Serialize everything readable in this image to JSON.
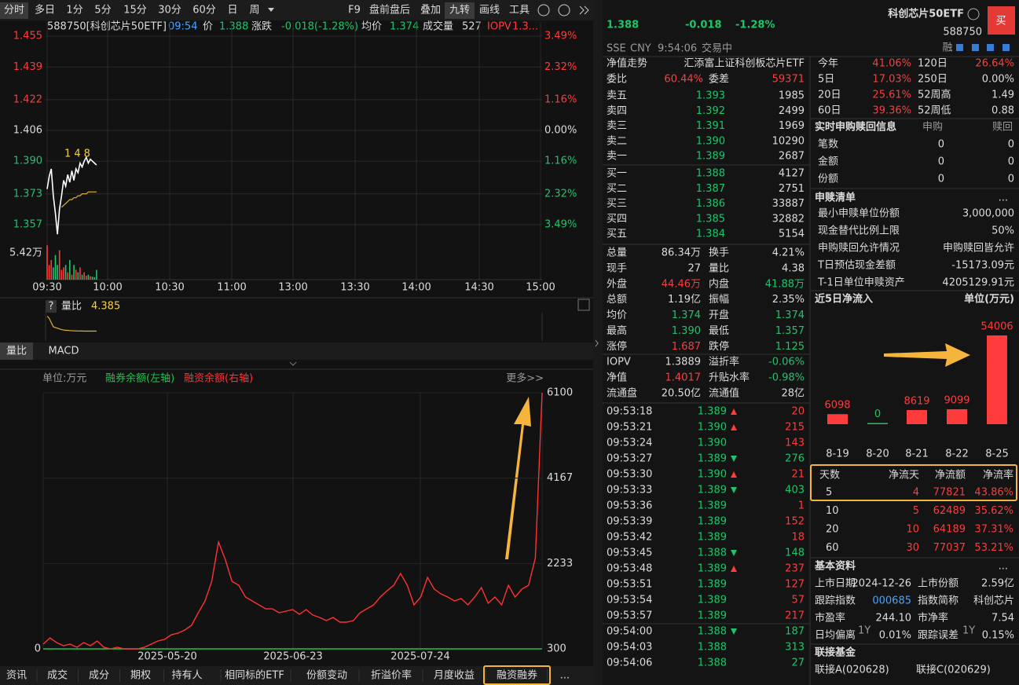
{
  "toolbar": {
    "periods": [
      "分时",
      "多日",
      "1分",
      "5分",
      "15分",
      "30分",
      "60分",
      "日",
      "周"
    ],
    "tools": [
      "F9",
      "盘前盘后",
      "叠加",
      "九转",
      "画线",
      "工具"
    ]
  },
  "intraday": {
    "legend": [
      "588750[科创芯片50ETF]",
      "09:54",
      "价",
      "1.388",
      "涨跌",
      "-0.018(-1.28%)",
      "均价",
      "1.374",
      "成交量",
      "527",
      "IOPV",
      "1.3..."
    ],
    "ylim": [
      1.3488,
      1.4624
    ],
    "yticks": [
      1.455,
      1.439,
      1.422,
      1.406,
      {
        "value": 1.39,
        "label": "1.390"
      },
      1.373,
      1.357
    ],
    "pct_ticks": [
      "3.49%",
      "2.32%",
      "1.16%",
      "0.00%",
      "1.16%",
      "2.32%",
      "3.49%"
    ],
    "vol_label": "5.42万",
    "vol_ylim": [
      0,
      8
    ],
    "xticks": [
      "09:30",
      "10:00",
      "10:30",
      "11:00",
      "13:00",
      "13:30",
      "14:00",
      "14:30",
      "15:00"
    ],
    "marker": "148",
    "price": [
      1.3755,
      1.382,
      1.386,
      1.372,
      1.363,
      1.352,
      1.365,
      1.372,
      1.38,
      1.377,
      1.383,
      1.379,
      1.385,
      1.38,
      1.386,
      1.384,
      1.389,
      1.387,
      1.39,
      1.392,
      1.389,
      1.391,
      1.39,
      1.389,
      1.388
    ],
    "avg": [
      null,
      null,
      null,
      null,
      null,
      null,
      null,
      1.366,
      1.367,
      1.368,
      1.369,
      1.37,
      1.37,
      1.371,
      1.371,
      1.372,
      1.372,
      1.373,
      1.373,
      1.373,
      1.374,
      1.374,
      1.374,
      1.374,
      1.374
    ],
    "volume": [
      7,
      3,
      4,
      2.5,
      5,
      3,
      6,
      2,
      2.5,
      3,
      1.5,
      4,
      1,
      3,
      2,
      1.5,
      2.5,
      1,
      1.5,
      0.8,
      1,
      0.7,
      0.6,
      0.5,
      2
    ]
  },
  "sub_panel": {
    "help": "?",
    "label": "量比",
    "value": "4.385",
    "ylim": [
      3,
      7
    ],
    "ratio": [
      6.5,
      6.2,
      5.6,
      5.0,
      4.9,
      4.8,
      4.7,
      4.6,
      4.55,
      4.5,
      4.5,
      4.45,
      4.45,
      4.43,
      4.42,
      4.41,
      4.4,
      4.4,
      4.39,
      4.39,
      4.39,
      4.388,
      4.387,
      4.386,
      4.385
    ]
  },
  "tabs": [
    "量比",
    "MACD"
  ],
  "margin_chart": {
    "unit": "单位:万元",
    "more": "更多>>",
    "xticks": [
      "2025-05-20",
      "2025-06-23",
      "2025-07-24"
    ],
    "yticks": [
      0
    ],
    "y2lim": [
      300,
      6100
    ],
    "y2ticks": [
      6100,
      4167,
      2233,
      300
    ],
    "series": [
      {
        "name": "融券余额(左轴)",
        "color": "#1fc24a",
        "values": [
          0,
          0,
          0,
          0,
          0,
          0,
          0,
          0,
          0,
          0
        ]
      },
      {
        "name": "融资余额(右轴)",
        "color": "#ff3232",
        "axis": "y2",
        "values": [
          407,
          549,
          442,
          371,
          407,
          336,
          442,
          371,
          478,
          336,
          300,
          336,
          300,
          300,
          300,
          336,
          407,
          478,
          514,
          620,
          656,
          727,
          834,
          1118,
          1385,
          1830,
          2719,
          2328,
          1830,
          1741,
          1474,
          1385,
          1296,
          1207,
          1207,
          1118,
          1154,
          1190,
          1083,
          1190,
          1065,
          1012,
          940,
          1012,
          905,
          905,
          940,
          1118,
          1207,
          1296,
          1474,
          1616,
          1741,
          2008,
          1741,
          1296,
          1474,
          1919,
          1654,
          1545,
          1474,
          1385,
          1439,
          1296,
          1474,
          1688,
          1332,
          1474,
          1296,
          1741,
          1474,
          1654,
          1741,
          2364,
          6100
        ]
      }
    ]
  },
  "bottom_tabs": [
    "资讯",
    "成交",
    "成分",
    "期权",
    "持有人",
    "相同标的ETF",
    "份额变动",
    "折溢价率",
    "月度收益",
    "融资融券",
    "..."
  ],
  "quote": {
    "price": "1.388",
    "change": "-0.018",
    "pct": "-1.28%",
    "name": "科创芯片50ETF",
    "code": "588750",
    "buy": "买",
    "margin_tag": "融",
    "status": [
      "SSE",
      "CNY",
      "9:54:06",
      "交易中"
    ]
  },
  "orderbook": {
    "trend": "净值走势",
    "fund": "汇添富上证科创板芯片ETF",
    "ratio": [
      "委比",
      "60.44%",
      "委差",
      "59371"
    ],
    "rows": [
      [
        "卖五",
        "1.393",
        "1985"
      ],
      [
        "卖四",
        "1.392",
        "2499"
      ],
      [
        "卖三",
        "1.391",
        "1969"
      ],
      [
        "卖二",
        "1.390",
        "10290"
      ],
      [
        "卖一",
        "1.389",
        "2687"
      ],
      [
        "买一",
        "1.388",
        "4127"
      ],
      [
        "买二",
        "1.387",
        "2751"
      ],
      [
        "买三",
        "1.386",
        "33887"
      ],
      [
        "买四",
        "1.385",
        "32882"
      ],
      [
        "买五",
        "1.384",
        "5154"
      ]
    ]
  },
  "stats": {
    "rows": [
      [
        "总量",
        "86.34万",
        "换手",
        "4.21%"
      ],
      [
        "现手",
        "27",
        "量比",
        "4.38"
      ],
      [
        "外盘",
        "44.46万",
        "内盘",
        "41.88万"
      ],
      [
        "总额",
        "1.19亿",
        "振幅",
        "2.35%"
      ],
      [
        "均价",
        "1.374",
        "开盘",
        "1.374"
      ],
      [
        "最高",
        "1.390",
        "最低",
        "1.357"
      ],
      [
        "涨停",
        "1.687",
        "跌停",
        "1.125"
      ],
      [
        "IOPV",
        "1.3889",
        "溢折率",
        "-0.06%"
      ],
      [
        "净值",
        "1.4017",
        "升贴水率",
        "-0.98%"
      ],
      [
        "流通盘",
        "20.50亿",
        "流通值",
        "28亿"
      ]
    ]
  },
  "trades": [
    {
      "time": "09:53:18",
      "price": "1.389",
      "volume": "20",
      "side": "buy",
      "arrow": "up"
    },
    {
      "time": "09:53:21",
      "price": "1.390",
      "volume": "215",
      "side": "buy",
      "arrow": "up"
    },
    {
      "time": "09:53:24",
      "price": "1.390",
      "volume": "143",
      "side": "buy",
      "arrow": null
    },
    {
      "time": "09:53:27",
      "price": "1.389",
      "volume": "276",
      "side": "sell",
      "arrow": "down"
    },
    {
      "time": "09:53:30",
      "price": "1.390",
      "volume": "21",
      "side": "buy",
      "arrow": "up"
    },
    {
      "time": "09:53:33",
      "price": "1.389",
      "volume": "403",
      "side": "sell",
      "arrow": "down"
    },
    {
      "time": "09:53:36",
      "price": "1.389",
      "volume": "1",
      "side": "buy",
      "arrow": null
    },
    {
      "time": "09:53:39",
      "price": "1.389",
      "volume": "152",
      "side": "buy",
      "arrow": null
    },
    {
      "time": "09:53:42",
      "price": "1.389",
      "volume": "18",
      "side": "buy",
      "arrow": null
    },
    {
      "time": "09:53:45",
      "price": "1.388",
      "volume": "148",
      "side": "sell",
      "arrow": "down"
    },
    {
      "time": "09:53:48",
      "price": "1.389",
      "volume": "237",
      "side": "buy",
      "arrow": "up"
    },
    {
      "time": "09:53:51",
      "price": "1.389",
      "volume": "127",
      "side": "buy",
      "arrow": null
    },
    {
      "time": "09:53:54",
      "price": "1.389",
      "volume": "57",
      "side": "buy",
      "arrow": null
    },
    {
      "time": "09:53:57",
      "price": "1.389",
      "volume": "217",
      "side": "buy",
      "arrow": null
    },
    {
      "time": "09:54:00",
      "price": "1.388",
      "volume": "187",
      "side": "sell",
      "arrow": "down"
    },
    {
      "time": "09:54:03",
      "price": "1.388",
      "volume": "313",
      "side": "sell",
      "arrow": null
    },
    {
      "time": "09:54:06",
      "price": "1.388",
      "volume": "27",
      "side": "sell",
      "arrow": null
    }
  ],
  "perf": {
    "rows": [
      [
        "今年",
        "41.06%",
        "120日",
        "26.64%"
      ],
      [
        "5日",
        "17.03%",
        "250日",
        "0.00%"
      ],
      [
        "20日",
        "25.61%",
        "52周高",
        "1.49"
      ],
      [
        "60日",
        "39.36%",
        "52周低",
        "0.88"
      ]
    ]
  },
  "creation": {
    "title": "实时申购赎回信息",
    "cols": [
      "申购",
      "赎回"
    ],
    "rows": [
      [
        "笔数",
        "0",
        "0"
      ],
      [
        "金额",
        "0",
        "0"
      ],
      [
        "份额",
        "0",
        "0"
      ]
    ]
  },
  "redemption_list": {
    "title": "申赎清单",
    "more": "...",
    "rows": [
      [
        "最小申赎单位份额",
        "3,000,000"
      ],
      [
        "现金替代比例上限",
        "50%"
      ],
      [
        "申购赎回允许情况",
        "申购赎回皆允许"
      ],
      [
        "T日预估现金差额",
        "-15173.09元"
      ],
      [
        "T-1日单位申赎资产",
        "4205129.91元"
      ]
    ]
  },
  "netflow": {
    "title": "近5日净流入",
    "unit": "单位(万元)",
    "categories": [
      "8-19",
      "8-20",
      "8-21",
      "8-22",
      "8-25"
    ],
    "values": [
      6098,
      0,
      8619,
      9099,
      54006
    ]
  },
  "flow_table": {
    "cols": [
      "天数",
      "净流天",
      "净流额",
      "净流率"
    ],
    "rows": [
      [
        "5",
        "4",
        "77821",
        "43.86%"
      ],
      [
        "10",
        "5",
        "62489",
        "35.62%"
      ],
      [
        "20",
        "10",
        "64189",
        "37.31%"
      ],
      [
        "60",
        "30",
        "77037",
        "53.21%"
      ]
    ]
  },
  "basic": {
    "title": "基本资料",
    "more": "...",
    "sup": "1Y",
    "rows": [
      [
        "上市日期",
        "2024-12-26",
        "上市份额",
        "2.59亿"
      ],
      [
        "跟踪指数",
        "000685",
        "指数简称",
        "科创芯片"
      ],
      [
        "市盈率",
        "244.10",
        "市净率",
        "7.54"
      ],
      [
        "日均偏离",
        "0.01%",
        "跟踪误差",
        "0.15%"
      ]
    ]
  },
  "linked": {
    "title": "联接基金",
    "items": [
      "联接A(020628)",
      "联接C(020629)"
    ]
  }
}
